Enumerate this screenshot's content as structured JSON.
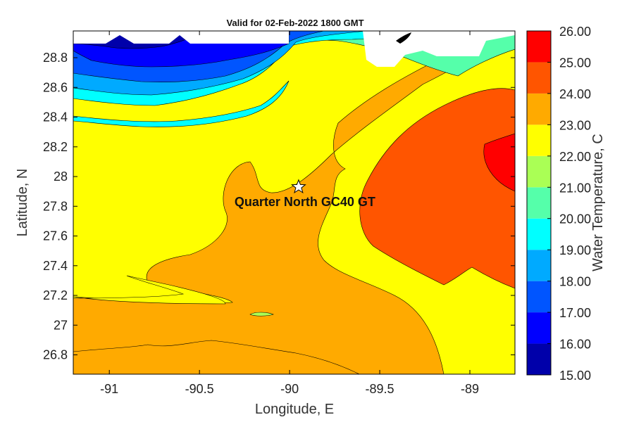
{
  "chart_data": {
    "type": "filled-contour",
    "title": "Valid for 02-Feb-2022 1800 GMT",
    "xlabel": "Longitude, E",
    "ylabel": "Latitude, N",
    "colorbar_label": "Water Temperature, C",
    "xlim": [
      -91.2,
      -88.75
    ],
    "ylim": [
      26.67,
      28.98
    ],
    "x_ticks": [
      -91,
      -90.5,
      -90,
      -89.5,
      -89
    ],
    "x_tick_labels": [
      "-91",
      "-90.5",
      "-90",
      "-89.5",
      "-89"
    ],
    "y_ticks": [
      26.8,
      27,
      27.2,
      27.4,
      27.6,
      27.8,
      28,
      28.2,
      28.4,
      28.6,
      28.8
    ],
    "y_tick_labels": [
      "26.8",
      "27",
      "27.2",
      "27.4",
      "27.6",
      "27.8",
      "28",
      "28.2",
      "28.4",
      "28.6",
      "28.8"
    ],
    "colorbar": {
      "levels": [
        15,
        16,
        17,
        18,
        19,
        20,
        21,
        22,
        23,
        24,
        25,
        26
      ],
      "level_labels": [
        "15.00",
        "16.00",
        "17.00",
        "18.00",
        "19.00",
        "20.00",
        "21.00",
        "22.00",
        "23.00",
        "24.00",
        "25.00",
        "26.00"
      ],
      "colors": [
        "#0000aa",
        "#0000ff",
        "#0055ff",
        "#00aaff",
        "#00ffff",
        "#55ffaa",
        "#aaff55",
        "#ffff00",
        "#ffaa00",
        "#ff5500",
        "#ff0000"
      ]
    },
    "bands": [
      {
        "range": [
          19,
          20
        ],
        "color": "#00ffff"
      },
      {
        "range": [
          20,
          21
        ],
        "color": "#55ffaa"
      },
      {
        "range": [
          21,
          22
        ],
        "color": "#aaff55"
      },
      {
        "range": [
          22,
          23
        ],
        "color": "#ffff00"
      },
      {
        "range": [
          23,
          24
        ],
        "color": "#ffaa00"
      },
      {
        "range": [
          24,
          25
        ],
        "color": "#ff5500"
      },
      {
        "range": [
          25,
          26
        ],
        "color": "#ff0000"
      }
    ],
    "marker": {
      "label": "Quarter North GC40 GT",
      "lon": -89.95,
      "lat": 27.93,
      "symbol": "star"
    },
    "no_data_color": "#ffffff"
  }
}
